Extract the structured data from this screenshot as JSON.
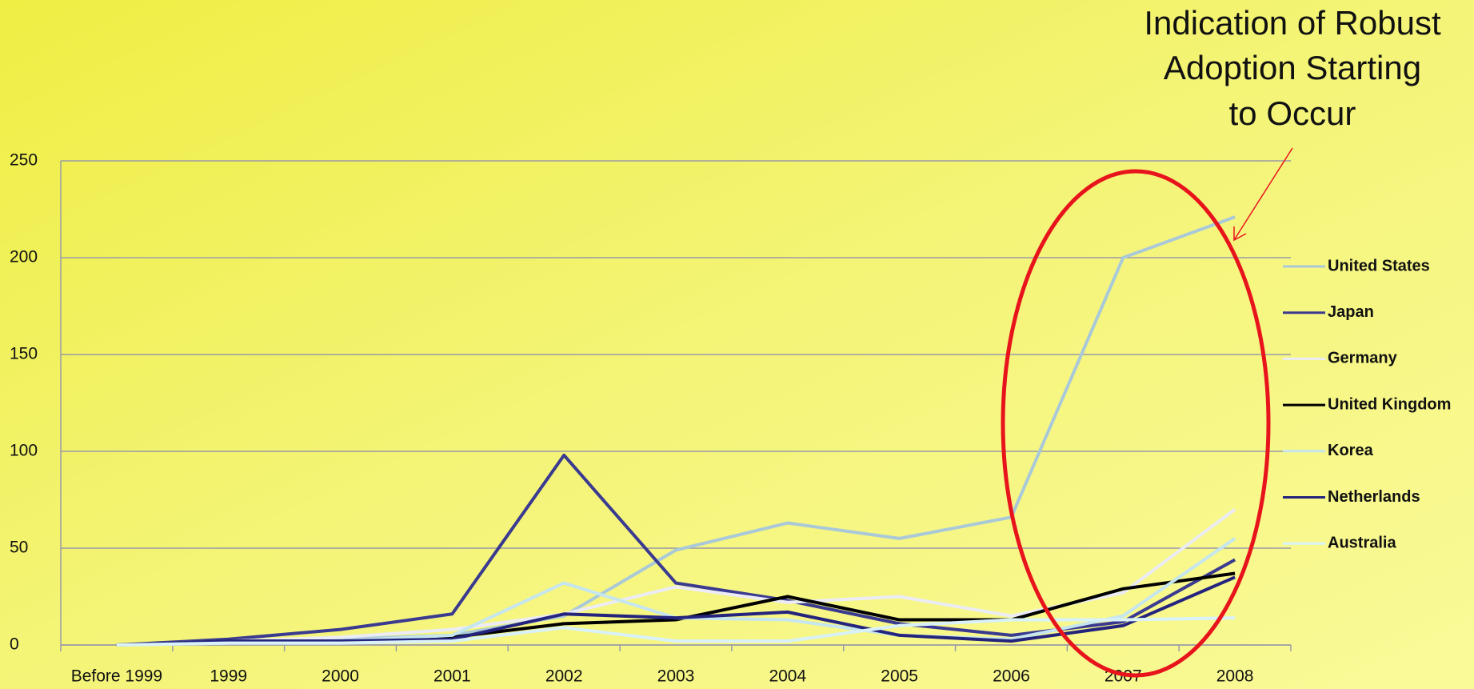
{
  "chart_data": {
    "type": "line",
    "annotation": [
      "Indication of Robust",
      "Adoption Starting",
      "to Occur"
    ],
    "categories": [
      "Before 1999",
      "1999",
      "2000",
      "2001",
      "2002",
      "2003",
      "2004",
      "2005",
      "2006",
      "2007",
      "2008"
    ],
    "series": [
      {
        "name": "United States",
        "color": "#a9c9d9",
        "values": [
          0,
          2,
          3,
          5,
          15,
          49,
          63,
          55,
          66,
          200,
          221
        ]
      },
      {
        "name": "Japan",
        "color": "#3a3a90",
        "values": [
          0,
          3,
          8,
          16,
          98,
          32,
          23,
          11,
          5,
          12,
          44
        ]
      },
      {
        "name": "Germany",
        "color": "#ececf6",
        "values": [
          0,
          2,
          4,
          8,
          16,
          30,
          22,
          25,
          15,
          27,
          70
        ]
      },
      {
        "name": "United Kingdom",
        "color": "#000000",
        "values": [
          0,
          2,
          2,
          4,
          11,
          13,
          25,
          13,
          13,
          29,
          37
        ]
      },
      {
        "name": "Korea",
        "color": "#c6e6ef",
        "values": [
          0,
          1,
          2,
          5,
          32,
          14,
          13,
          5,
          3,
          15,
          55
        ]
      },
      {
        "name": "Netherlands",
        "color": "#24247e",
        "values": [
          0,
          2,
          2,
          3,
          16,
          14,
          17,
          5,
          2,
          10,
          35
        ]
      },
      {
        "name": "Australia",
        "color": "#d9f1f8",
        "values": [
          0,
          1,
          1,
          2,
          9,
          2,
          2,
          10,
          13,
          13,
          14
        ]
      }
    ],
    "ylim": [
      0,
      250
    ],
    "yticks": [
      0,
      50,
      100,
      150,
      200,
      250
    ],
    "grid": true,
    "legend": "right"
  }
}
